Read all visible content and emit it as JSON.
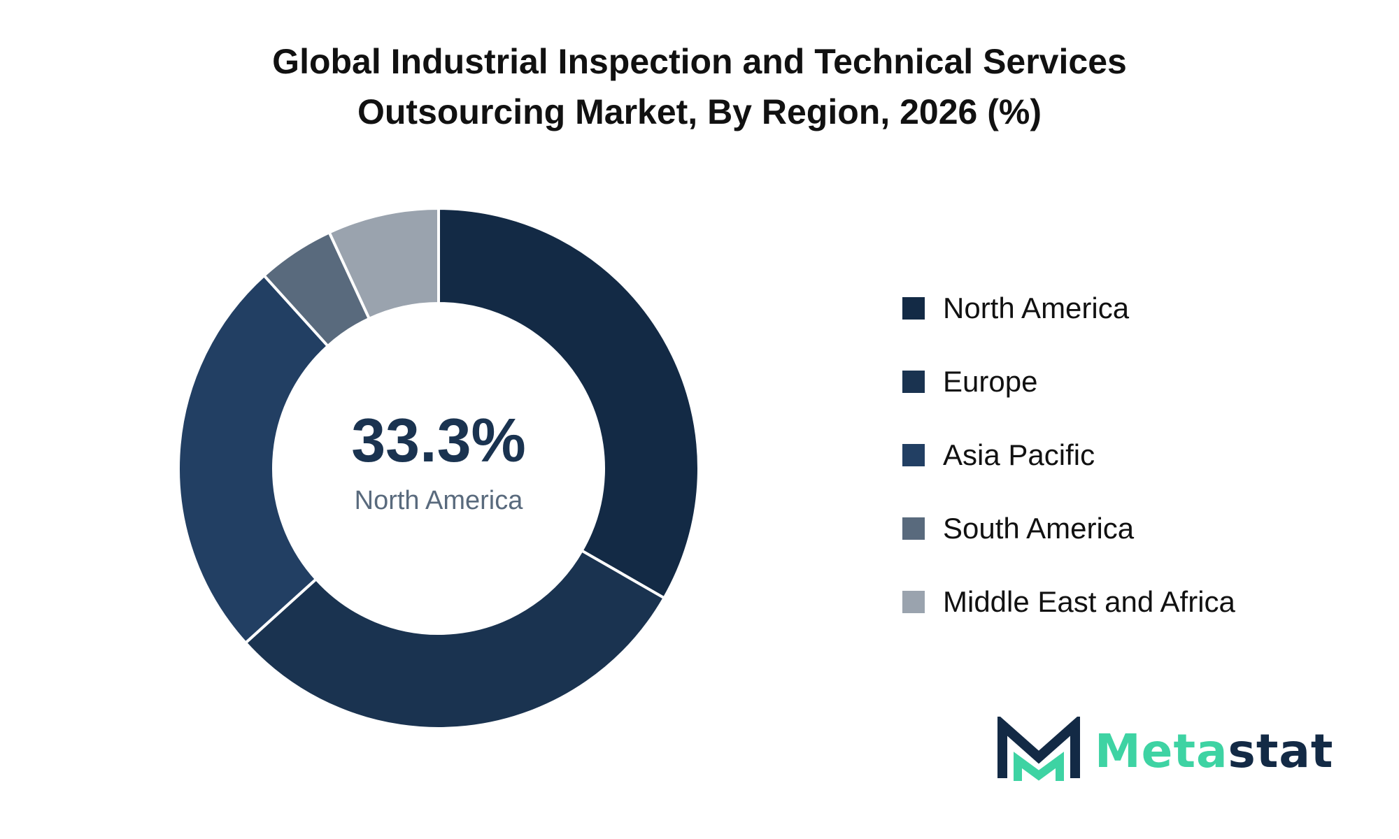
{
  "chart_data": {
    "type": "pie",
    "variant": "donut",
    "title_lines": [
      "Global Industrial Inspection and Technical Services",
      "Outsourcing Market, By Region, 2026 (%)"
    ],
    "categories": [
      "North America",
      "Europe",
      "Asia Pacific",
      "South America",
      "Middle East and Africa"
    ],
    "values": [
      33.3,
      30.0,
      25.0,
      4.8,
      6.9
    ],
    "colors": [
      "#132a45",
      "#1a3350",
      "#223f63",
      "#596a7d",
      "#9aa3ae"
    ],
    "center_label": {
      "value": "33.3%",
      "category": "North America"
    },
    "legend_position": "right",
    "start_angle": "top",
    "direction": "clockwise"
  },
  "brand": {
    "name_part1": "Meta",
    "name_part2": "stat",
    "accent_color": "#3ed3a3",
    "dark_color": "#132a45"
  }
}
